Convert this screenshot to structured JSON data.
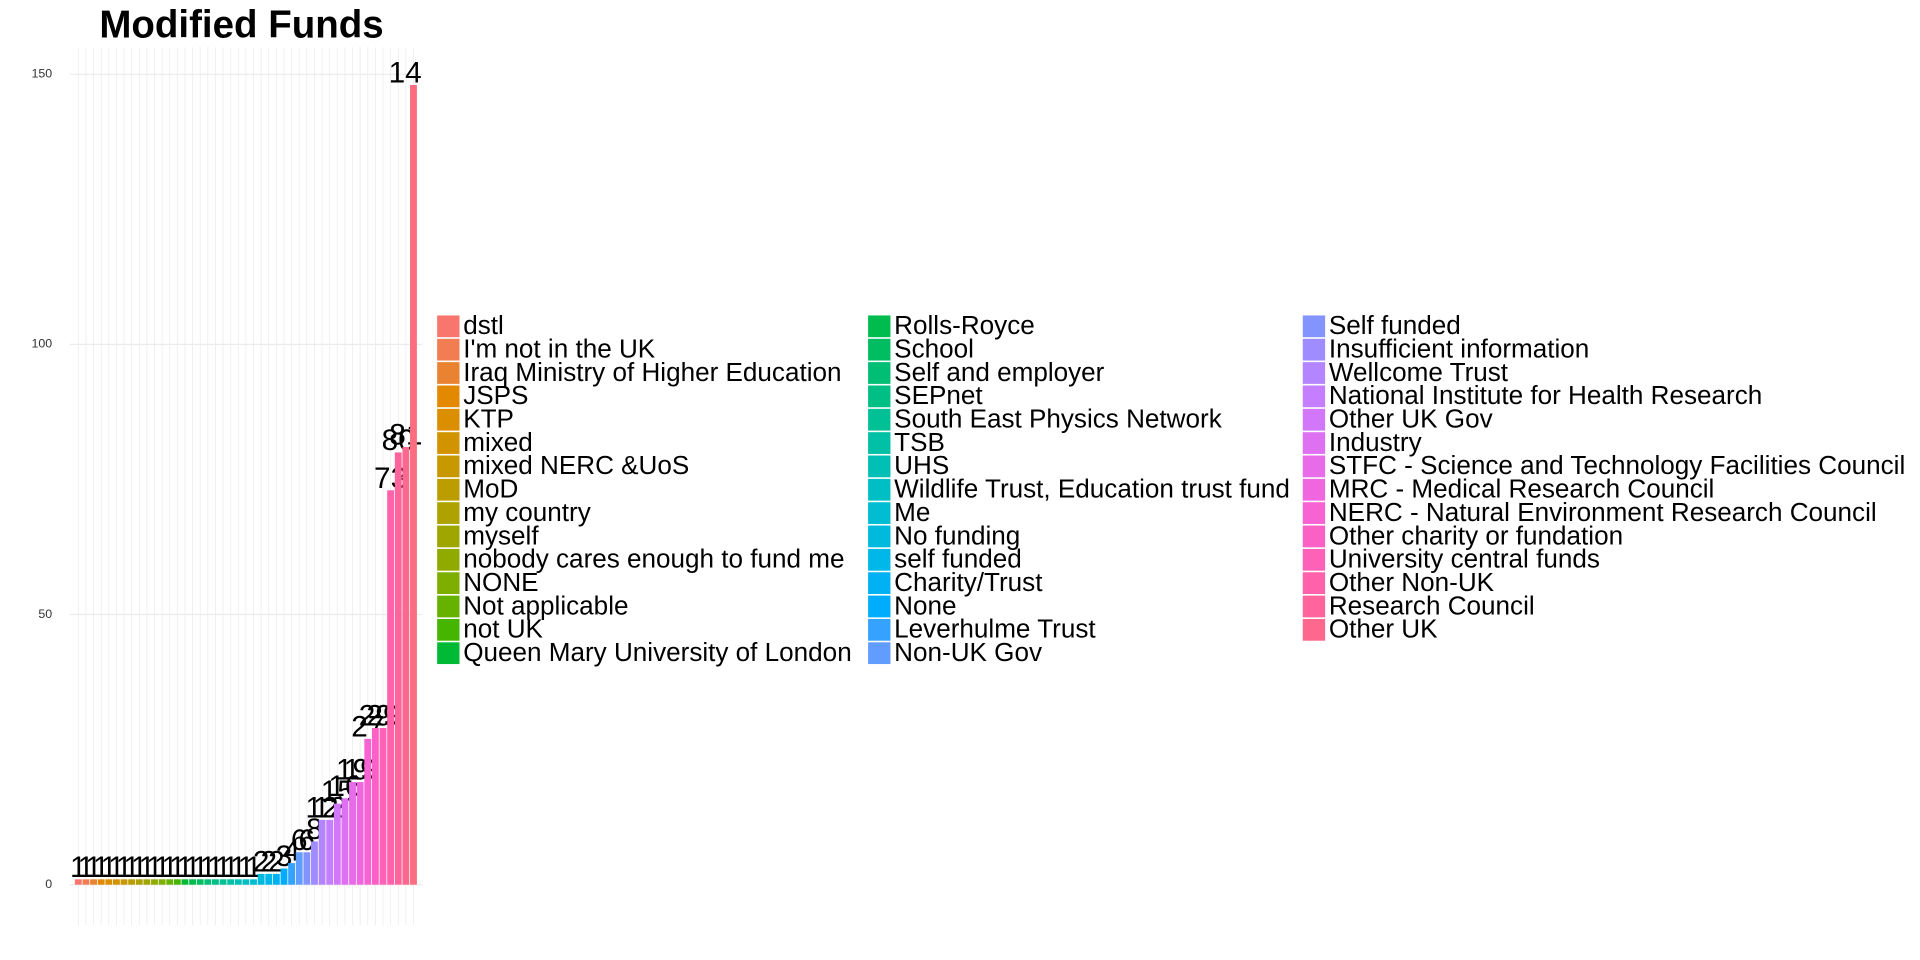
{
  "chart_data": {
    "type": "bar",
    "title": "Modified Funds",
    "categories": [
      "dstl",
      "I'm not in the UK",
      "Iraq Ministry of Higher Education",
      "JSPS",
      "KTP",
      "mixed",
      "mixed NERC &UoS",
      "MoD",
      "my country",
      "myself",
      "nobody cares enough to fund me",
      "NONE",
      "Not applicable",
      "not UK",
      "Queen Mary University of London",
      "Rolls-Royce",
      "School",
      "Self and employer",
      "SEPnet",
      "South East Physics Network",
      "TSB",
      "UHS",
      "Wildlife Trust, Education trust fund",
      "Me",
      "No funding",
      "self funded",
      "Charity/Trust",
      "None",
      "Leverhulme Trust",
      "Non-UK Gov",
      "Self funded",
      "Insufficient information",
      "Wellcome Trust",
      "National Institute for Health Research",
      "Other UK Gov",
      "Industry",
      "STFC - Science and Technology Facilities Council",
      "MRC - Medical Research Council",
      "NERC - Natural Environment Research Council",
      "Other charity or fundation",
      "University central funds",
      "Other Non-UK",
      "Research Council",
      "Other UK",
      null
    ],
    "values": [
      1,
      1,
      1,
      1,
      1,
      1,
      1,
      1,
      1,
      1,
      1,
      1,
      1,
      1,
      1,
      1,
      1,
      1,
      1,
      1,
      1,
      1,
      1,
      1,
      2,
      2,
      2,
      3,
      4,
      6,
      6,
      8,
      12,
      12,
      15,
      16,
      19,
      19,
      27,
      29,
      29,
      73,
      80,
      81,
      148
    ],
    "colors": [
      "#F8766D",
      "#F27D52",
      "#EA8331",
      "#E38900",
      "#DB8E00",
      "#D29300",
      "#C79800",
      "#BB9D00",
      "#AEA200",
      "#A0A600",
      "#90AA00",
      "#7DAE00",
      "#66B200",
      "#45B500",
      "#00B935",
      "#00BB4E",
      "#00BD62",
      "#00BE74",
      "#00BF85",
      "#00C096",
      "#00C0A6",
      "#00C0B5",
      "#00BFC4",
      "#00BDD2",
      "#00BADE",
      "#00B7E9",
      "#00B2F3",
      "#00ACFC",
      "#35A2FF",
      "#619CFF",
      "#8494FF",
      "#9F8CFF",
      "#B385FF",
      "#C47EFF",
      "#D277FA",
      "#DE71F2",
      "#E86BE9",
      "#F066DE",
      "#F763D2",
      "#FB61C5",
      "#FE61B8",
      "#FF62AA",
      "#FF659C",
      "#FE688E",
      "#FA6E80"
    ],
    "ylim": [
      -7.5,
      155
    ],
    "yticks": [
      0,
      50,
      100,
      150
    ],
    "grid": true,
    "legend": "right"
  }
}
